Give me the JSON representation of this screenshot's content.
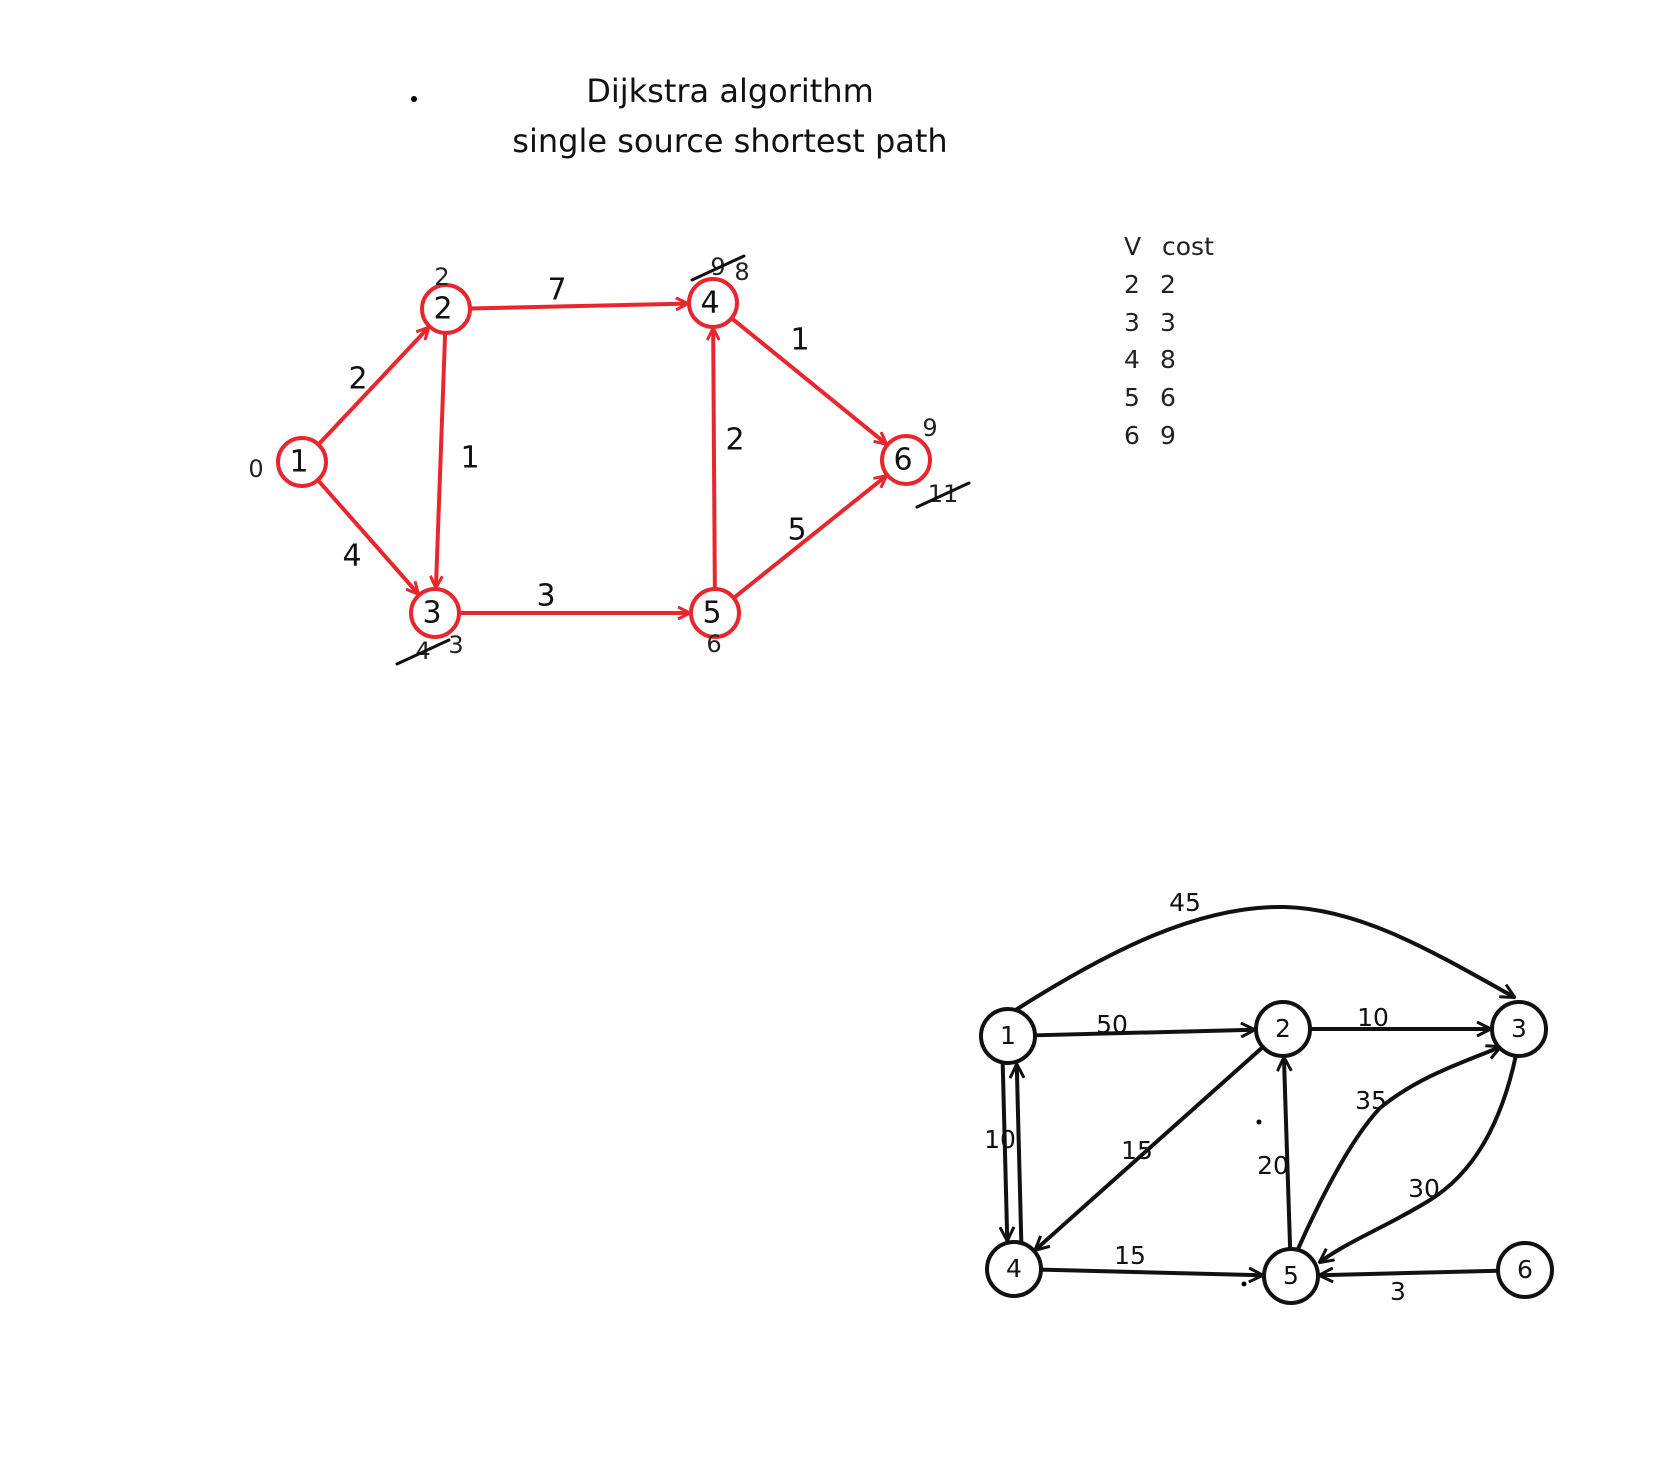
{
  "title": {
    "line1": "Dijkstra algorithm",
    "line2": "single source shortest path"
  },
  "cost_table": {
    "headers": [
      "V",
      "cost"
    ],
    "rows": [
      {
        "v": "2",
        "cost": "2"
      },
      {
        "v": "3",
        "cost": "3"
      },
      {
        "v": "4",
        "cost": "8"
      },
      {
        "v": "5",
        "cost": "6"
      },
      {
        "v": "6",
        "cost": "9"
      }
    ]
  },
  "graph1": {
    "color": "#e8262d",
    "nodes": [
      {
        "id": "1",
        "dist": "0"
      },
      {
        "id": "2",
        "dist": "2"
      },
      {
        "id": "3",
        "dist": "3",
        "crossed": "4"
      },
      {
        "id": "4",
        "dist": "8",
        "crossed": "9"
      },
      {
        "id": "5",
        "dist": "6"
      },
      {
        "id": "6",
        "dist": "9",
        "crossed": "11"
      }
    ],
    "edges": [
      {
        "from": "1",
        "to": "2",
        "w": "2"
      },
      {
        "from": "1",
        "to": "3",
        "w": "4"
      },
      {
        "from": "2",
        "to": "3",
        "w": "1"
      },
      {
        "from": "2",
        "to": "4",
        "w": "7"
      },
      {
        "from": "3",
        "to": "5",
        "w": "3"
      },
      {
        "from": "5",
        "to": "4",
        "w": "2"
      },
      {
        "from": "4",
        "to": "6",
        "w": "1"
      },
      {
        "from": "5",
        "to": "6",
        "w": "5"
      }
    ]
  },
  "graph2": {
    "color": "#111111",
    "nodes": [
      {
        "id": "1"
      },
      {
        "id": "2"
      },
      {
        "id": "3"
      },
      {
        "id": "4"
      },
      {
        "id": "5"
      },
      {
        "id": "6"
      }
    ],
    "edges": [
      {
        "from": "1",
        "to": "3",
        "w": "45"
      },
      {
        "from": "1",
        "to": "2",
        "w": "50"
      },
      {
        "from": "2",
        "to": "3",
        "w": "10"
      },
      {
        "from": "1",
        "to": "4",
        "w": "10"
      },
      {
        "from": "4",
        "to": "1",
        "w": ""
      },
      {
        "from": "2",
        "to": "4",
        "w": "15"
      },
      {
        "from": "4",
        "to": "5",
        "w": "15"
      },
      {
        "from": "5",
        "to": "2",
        "w": "20"
      },
      {
        "from": "5",
        "to": "3",
        "w": "35"
      },
      {
        "from": "3",
        "to": "5",
        "w": "30"
      },
      {
        "from": "6",
        "to": "5",
        "w": "3"
      }
    ]
  }
}
